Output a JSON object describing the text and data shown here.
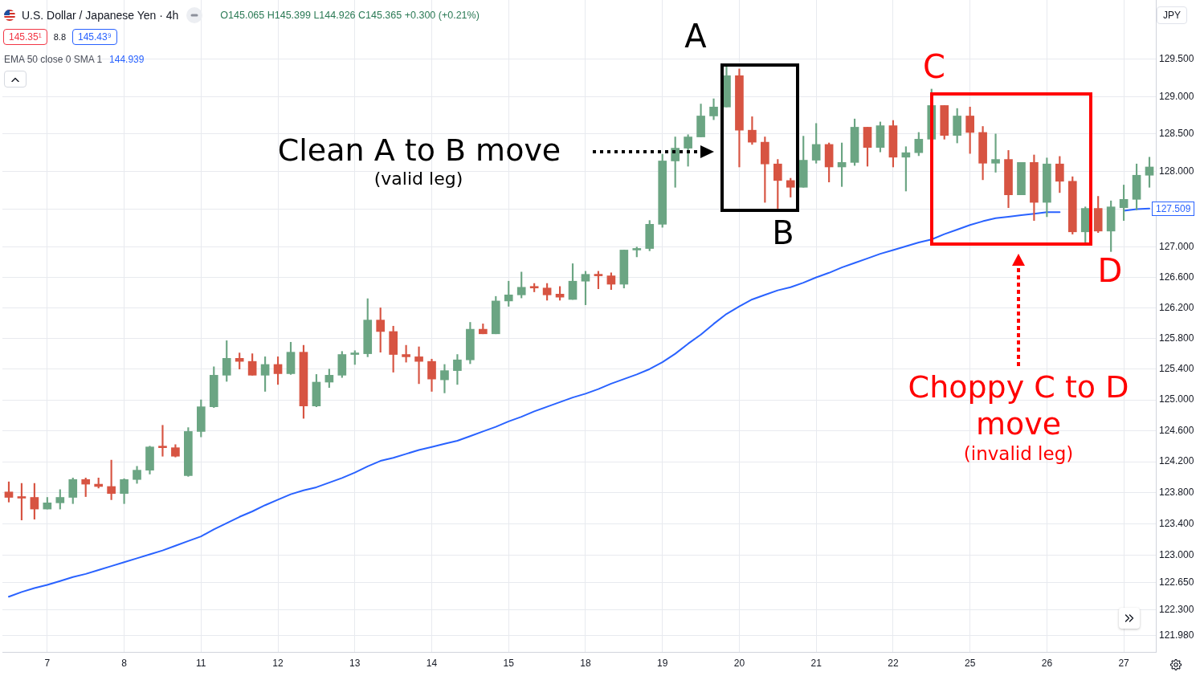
{
  "chart_data": {
    "type": "candlestick",
    "title": "U.S. Dollar / Japanese Yen · 4h",
    "subtitle": "O145.065 H145.399 L144.926 C145.365 +0.300 (+0.21%)",
    "categories": [
      null,
      null,
      null,
      "7",
      null,
      null,
      null,
      null,
      null,
      "8",
      null,
      null,
      null,
      null,
      null,
      "11",
      null,
      null,
      null,
      null,
      null,
      "12",
      null,
      null,
      null,
      null,
      null,
      "13",
      null,
      null,
      null,
      null,
      null,
      "14",
      null,
      null,
      null,
      null,
      null,
      "15",
      null,
      null,
      null,
      null,
      null,
      "18",
      null,
      null,
      null,
      null,
      null,
      "19",
      null,
      null,
      null,
      null,
      null,
      "20",
      null,
      null,
      null,
      null,
      null,
      "21",
      null,
      null,
      null,
      null,
      null,
      "22",
      null,
      null,
      null,
      null,
      null,
      "25",
      null,
      null,
      null,
      null,
      null,
      "26",
      null,
      null,
      null,
      null,
      null,
      "27",
      null,
      null
    ],
    "ohlc": [
      [
        123.81,
        123.94,
        123.68,
        123.74
      ],
      [
        123.74,
        123.92,
        123.45,
        123.73
      ],
      [
        123.74,
        123.92,
        123.46,
        123.59
      ],
      [
        123.59,
        123.74,
        123.59,
        123.67
      ],
      [
        123.67,
        123.84,
        123.59,
        123.74
      ],
      [
        123.74,
        123.99,
        123.66,
        123.97
      ],
      [
        123.97,
        123.99,
        123.75,
        123.91
      ],
      [
        123.91,
        123.99,
        123.86,
        123.88
      ],
      [
        123.88,
        124.22,
        123.71,
        123.79
      ],
      [
        123.79,
        123.98,
        123.66,
        123.97
      ],
      [
        123.97,
        124.14,
        123.92,
        124.09
      ],
      [
        124.09,
        124.4,
        124.04,
        124.39
      ],
      [
        124.39,
        124.67,
        124.27,
        124.38
      ],
      [
        124.38,
        124.42,
        124.26,
        124.27
      ],
      [
        124.02,
        124.64,
        124.01,
        124.59
      ],
      [
        124.59,
        125.0,
        124.52,
        124.91
      ],
      [
        124.91,
        125.43,
        124.9,
        125.32
      ],
      [
        125.32,
        125.77,
        125.24,
        125.54
      ],
      [
        125.54,
        125.61,
        125.4,
        125.5
      ],
      [
        125.5,
        125.6,
        125.32,
        125.32
      ],
      [
        125.32,
        125.56,
        125.11,
        125.46
      ],
      [
        125.46,
        125.56,
        125.2,
        125.34
      ],
      [
        125.34,
        125.75,
        125.33,
        125.62
      ],
      [
        125.62,
        125.71,
        124.76,
        124.92
      ],
      [
        124.92,
        125.33,
        124.91,
        125.23
      ],
      [
        125.23,
        125.4,
        125.16,
        125.32
      ],
      [
        125.32,
        125.63,
        125.29,
        125.59
      ],
      [
        125.59,
        125.64,
        125.46,
        125.59
      ],
      [
        125.6,
        126.32,
        125.56,
        126.04
      ],
      [
        126.04,
        126.2,
        125.62,
        125.89
      ],
      [
        125.89,
        125.96,
        125.36,
        125.59
      ],
      [
        125.59,
        125.71,
        125.49,
        125.56
      ],
      [
        125.56,
        125.69,
        125.21,
        125.5
      ],
      [
        125.5,
        125.53,
        125.11,
        125.27
      ],
      [
        125.26,
        125.46,
        125.09,
        125.38
      ],
      [
        125.38,
        125.59,
        125.2,
        125.52
      ],
      [
        125.52,
        126.01,
        125.47,
        125.92
      ],
      [
        125.92,
        125.99,
        125.86,
        125.86
      ],
      [
        125.86,
        126.35,
        125.86,
        126.29
      ],
      [
        126.29,
        126.55,
        126.22,
        126.37
      ],
      [
        126.37,
        126.67,
        126.33,
        126.47
      ],
      [
        126.47,
        126.52,
        126.41,
        126.46
      ],
      [
        126.46,
        126.52,
        126.3,
        126.37
      ],
      [
        126.38,
        126.48,
        126.3,
        126.34
      ],
      [
        126.31,
        126.78,
        126.31,
        126.55
      ],
      [
        126.55,
        126.68,
        126.24,
        126.64
      ],
      [
        126.64,
        126.68,
        126.45,
        126.62
      ],
      [
        126.62,
        126.66,
        126.44,
        126.51
      ],
      [
        126.51,
        126.96,
        126.46,
        126.96
      ],
      [
        126.96,
        127.0,
        126.87,
        126.98
      ],
      [
        126.98,
        127.35,
        126.95,
        127.3
      ],
      [
        127.3,
        128.23,
        127.26,
        128.14
      ],
      [
        128.14,
        128.46,
        127.79,
        128.31
      ],
      [
        128.31,
        128.49,
        128.07,
        128.46
      ],
      [
        128.46,
        128.9,
        128.46,
        128.74
      ],
      [
        128.74,
        128.97,
        128.69,
        128.86
      ],
      [
        128.86,
        129.4,
        128.86,
        129.28
      ],
      [
        129.28,
        129.37,
        128.06,
        128.55
      ],
      [
        128.55,
        128.73,
        128.36,
        128.39
      ],
      [
        128.39,
        128.46,
        127.59,
        128.1
      ],
      [
        128.1,
        128.16,
        127.51,
        127.88
      ],
      [
        127.88,
        127.91,
        127.66,
        127.79
      ],
      [
        127.79,
        128.47,
        127.79,
        128.15
      ],
      [
        128.15,
        128.64,
        128.11,
        128.36
      ],
      [
        128.36,
        128.38,
        127.86,
        128.06
      ],
      [
        128.06,
        128.38,
        127.8,
        128.12
      ],
      [
        128.12,
        128.7,
        128.08,
        128.59
      ],
      [
        128.59,
        128.59,
        128.07,
        128.32
      ],
      [
        128.32,
        128.66,
        128.26,
        128.61
      ],
      [
        128.61,
        128.68,
        128.06,
        128.19
      ],
      [
        128.19,
        128.33,
        127.74,
        128.25
      ],
      [
        128.25,
        128.52,
        128.21,
        128.43
      ],
      [
        128.43,
        129.1,
        128.43,
        128.88
      ],
      [
        128.88,
        128.88,
        128.43,
        128.48
      ],
      [
        128.48,
        128.84,
        128.38,
        128.74
      ],
      [
        128.74,
        128.86,
        128.24,
        128.52
      ],
      [
        128.52,
        128.6,
        127.89,
        128.11
      ],
      [
        128.11,
        128.5,
        127.99,
        128.16
      ],
      [
        128.16,
        128.28,
        127.52,
        127.69
      ],
      [
        127.69,
        128.12,
        127.69,
        128.12
      ],
      [
        128.12,
        128.22,
        127.35,
        127.59
      ],
      [
        127.59,
        128.18,
        127.4,
        128.1
      ],
      [
        128.1,
        128.2,
        127.72,
        127.87
      ],
      [
        127.87,
        127.93,
        127.17,
        127.2
      ],
      [
        127.2,
        127.53,
        127.06,
        127.51
      ],
      [
        127.51,
        127.67,
        127.19,
        127.21
      ],
      [
        127.21,
        127.61,
        126.94,
        127.53
      ],
      [
        127.52,
        127.82,
        127.35,
        127.63
      ],
      [
        127.63,
        128.1,
        127.49,
        127.95
      ],
      [
        127.95,
        128.19,
        127.79,
        128.06
      ]
    ],
    "colors": [
      "#d75442",
      "#d75442",
      "#d75442",
      "#6ba583",
      "#6ba583",
      "#6ba583",
      "#d75442",
      "#d75442",
      "#d75442",
      "#6ba583",
      "#6ba583",
      "#6ba583",
      "#d75442",
      "#d75442",
      "#6ba583",
      "#6ba583",
      "#6ba583",
      "#6ba583",
      "#d75442",
      "#d75442",
      "#6ba583",
      "#d75442",
      "#6ba583",
      "#d75442",
      "#6ba583",
      "#6ba583",
      "#6ba583",
      "#6ba583",
      "#6ba583",
      "#d75442",
      "#d75442",
      "#d75442",
      "#d75442",
      "#d75442",
      "#6ba583",
      "#6ba583",
      "#6ba583",
      "#d75442",
      "#6ba583",
      "#6ba583",
      "#6ba583",
      "#d75442",
      "#d75442",
      "#d75442",
      "#6ba583",
      "#6ba583",
      "#d75442",
      "#d75442",
      "#6ba583",
      "#6ba583",
      "#6ba583",
      "#6ba583",
      "#6ba583",
      "#6ba583",
      "#6ba583",
      "#6ba583",
      "#6ba583",
      "#d75442",
      "#d75442",
      "#d75442",
      "#d75442",
      "#d75442",
      "#6ba583",
      "#6ba583",
      "#d75442",
      "#6ba583",
      "#6ba583",
      "#d75442",
      "#6ba583",
      "#d75442",
      "#6ba583",
      "#6ba583",
      "#6ba583",
      "#d75442",
      "#6ba583",
      "#d75442",
      "#d75442",
      "#6ba583",
      "#d75442",
      "#6ba583",
      "#d75442",
      "#6ba583",
      "#d75442",
      "#d75442",
      "#6ba583",
      "#d75442",
      "#6ba583",
      "#6ba583",
      "#6ba583",
      "#6ba583"
    ],
    "series": [
      {
        "type": "line",
        "color": "#2962ff",
        "values": [
          122.47,
          122.53,
          122.58,
          122.62,
          122.67,
          122.72,
          122.76,
          122.81,
          122.86,
          122.91,
          122.96,
          123.01,
          123.06,
          123.12,
          123.18,
          123.24,
          123.33,
          123.41,
          123.49,
          123.56,
          123.64,
          123.71,
          123.78,
          123.83,
          123.87,
          123.93,
          123.99,
          124.06,
          124.14,
          124.21,
          124.25,
          124.3,
          124.35,
          124.39,
          124.43,
          124.47,
          124.53,
          124.59,
          124.65,
          124.72,
          124.78,
          124.85,
          124.91,
          124.97,
          125.03,
          125.08,
          125.14,
          125.21,
          125.27,
          125.33,
          125.4,
          125.49,
          125.6,
          125.73,
          125.85,
          125.99,
          126.12,
          126.22,
          126.31,
          126.37,
          126.43,
          126.47,
          126.53,
          126.6,
          126.66,
          126.73,
          126.79,
          126.85,
          126.91,
          126.96,
          127.01,
          127.06,
          127.1,
          127.17,
          127.23,
          127.29,
          127.34,
          127.38,
          127.4,
          127.42,
          127.44,
          127.46,
          127.46,
          null,
          null,
          null,
          null,
          127.48,
          127.5,
          127.509
        ]
      }
    ],
    "ylim": [
      121.77,
      130.3
    ],
    "yticks": [
      {
        "value": 121.98,
        "label": "121.980"
      },
      {
        "value": 122.3,
        "label": "122.300"
      },
      {
        "value": 122.65,
        "label": "122.650"
      },
      {
        "value": 123,
        "label": "123.000"
      },
      {
        "value": 123.4,
        "label": "123.400"
      },
      {
        "value": 123.8,
        "label": "123.800"
      },
      {
        "value": 124.2,
        "label": "124.200"
      },
      {
        "value": 124.6,
        "label": "124.600"
      },
      {
        "value": 125,
        "label": "125.000"
      },
      {
        "value": 125.4,
        "label": "125.400"
      },
      {
        "value": 125.8,
        "label": "125.800"
      },
      {
        "value": 126.2,
        "label": "126.200"
      },
      {
        "value": 126.6,
        "label": "126.600"
      },
      {
        "value": 127,
        "label": "127.000"
      },
      {
        "value": 127.5,
        "label": null
      },
      {
        "value": 128,
        "label": "128.000"
      },
      {
        "value": 128.5,
        "label": "128.500"
      },
      {
        "value": 129,
        "label": "129.000"
      },
      {
        "value": 129.5,
        "label": "129.500"
      }
    ],
    "log": true,
    "grid": true,
    "marker": "none",
    "annotations": [
      "145.35¹",
      "8.8",
      "145.43⁹",
      "EMA 50 close 0 SMA 1",
      "144.939",
      "JPY",
      "127.509",
      "A",
      "B",
      "C",
      "D",
      "Clean A to B move",
      "(valid leg)",
      "Choppy C to D move",
      "(invalid leg)"
    ]
  }
}
